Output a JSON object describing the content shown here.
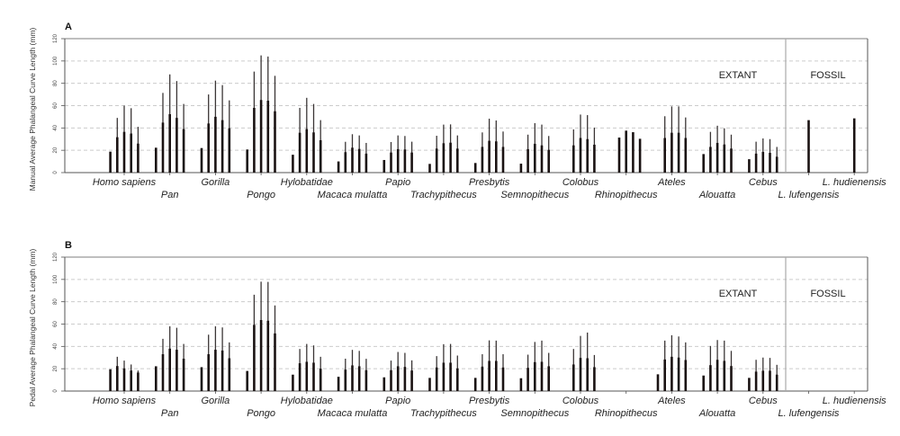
{
  "chart_data": [
    {
      "type": "bar",
      "panel": "A",
      "ylabel": "Manual Average Phalangeal Curve Length (mm)",
      "ylim": [
        0,
        120
      ],
      "yticks": [
        "0",
        "20",
        "40",
        "60",
        "80",
        "100",
        "120"
      ],
      "grid": "dashed horizontal",
      "regions": [
        "EXTANT",
        "FOSSIL"
      ],
      "note": "thick bar = mean, thin line = maximum; five bars per taxon for rays 1-5",
      "categories": [
        "Homo sapiens",
        "Pan",
        "Gorilla",
        "Pongo",
        "Hylobatidae",
        "Macaca mulatta",
        "Papio",
        "Trachypithecus",
        "Presbytis",
        "Semnopithecus",
        "Colobus",
        "Rhinopithecus",
        "Ateles",
        "Alouatta",
        "Cebus",
        "L. lufengensis",
        "L. hudienensis"
      ],
      "mean": [
        [
          18.8,
          31.7,
          36.5,
          35.0,
          26.0
        ],
        [
          22.3,
          44.8,
          52.3,
          49.0,
          39.0
        ],
        [
          22.0,
          44.0,
          50.0,
          47.0,
          39.7
        ],
        [
          20.7,
          58.0,
          65.0,
          64.4,
          55.0
        ],
        [
          16.0,
          35.7,
          39.0,
          36.0,
          29.0
        ],
        [
          10.0,
          18.3,
          22.3,
          21.2,
          17.0
        ],
        [
          11.3,
          18.0,
          21.0,
          20.7,
          18.0
        ],
        [
          7.8,
          21.5,
          26.3,
          26.8,
          21.5
        ],
        [
          8.6,
          23.0,
          28.5,
          28.0,
          23.0
        ],
        [
          8.0,
          21.0,
          25.8,
          24.4,
          20.4
        ],
        [
          null,
          24.4,
          31.0,
          30.0,
          25.0
        ],
        [
          null,
          31.4,
          37.6,
          36.2,
          30.3
        ],
        [
          null,
          31.0,
          35.7,
          35.7,
          31.0
        ],
        [
          16.6,
          23.0,
          26.6,
          25.2,
          21.5
        ],
        [
          12.0,
          17.0,
          18.5,
          17.7,
          14.2
        ],
        [
          null,
          null,
          47.0,
          null,
          null
        ],
        [
          null,
          null,
          48.6,
          null,
          null
        ]
      ],
      "max": [
        [
          null,
          49.0,
          60.0,
          57.7,
          41.0
        ],
        [
          null,
          71.4,
          88.0,
          82.0,
          61.5
        ],
        [
          null,
          70.0,
          82.4,
          78.4,
          64.7
        ],
        [
          null,
          90.5,
          105.0,
          104.0,
          86.7
        ],
        [
          null,
          58.0,
          67.0,
          61.5,
          47.0
        ],
        [
          null,
          27.6,
          34.4,
          33.3,
          26.6
        ],
        [
          null,
          27.4,
          33.3,
          32.8,
          27.7
        ],
        [
          null,
          33.0,
          43.0,
          43.2,
          33.3
        ],
        [
          null,
          36.0,
          48.3,
          46.7,
          36.8
        ],
        [
          null,
          34.0,
          44.3,
          43.0,
          32.8
        ],
        [
          null,
          38.7,
          52.0,
          51.5,
          40.3
        ],
        [
          null,
          null,
          null,
          null,
          null
        ],
        [
          null,
          50.5,
          59.3,
          59.3,
          49.4
        ],
        [
          null,
          36.5,
          42.0,
          39.7,
          34.0
        ],
        [
          null,
          27.7,
          30.6,
          30.0,
          23.0
        ],
        [
          null,
          null,
          null,
          null,
          null
        ],
        [
          null,
          null,
          null,
          null,
          null
        ]
      ]
    },
    {
      "type": "bar",
      "panel": "B",
      "ylabel": "Pedal Average Phalangeal Curve Length (mm)",
      "ylim": [
        0,
        120
      ],
      "yticks": [
        "0",
        "20",
        "40",
        "60",
        "80",
        "100",
        "120"
      ],
      "grid": "dashed horizontal",
      "regions": [
        "EXTANT",
        "FOSSIL"
      ],
      "note": "thick bar = mean, thin line = maximum; five bars per taxon for rays 1-5",
      "categories": [
        "Homo sapiens",
        "Pan",
        "Gorilla",
        "Pongo",
        "Hylobatidae",
        "Macaca mulatta",
        "Papio",
        "Trachypithecus",
        "Presbytis",
        "Semnopithecus",
        "Colobus",
        "Rhinopithecus",
        "Ateles",
        "Alouatta",
        "Cebus",
        "L. lufengensis",
        "L. hudienensis"
      ],
      "mean": [
        [
          19.5,
          22.4,
          20.3,
          18.4,
          16.6
        ],
        [
          22.2,
          33.0,
          38.0,
          37.0,
          29.0
        ],
        [
          21.4,
          33.0,
          37.0,
          36.3,
          29.4
        ],
        [
          18.0,
          59.3,
          63.6,
          63.0,
          51.6
        ],
        [
          14.7,
          24.9,
          26.2,
          25.4,
          20.0
        ],
        [
          12.8,
          19.2,
          23.0,
          22.2,
          18.7
        ],
        [
          12.3,
          18.7,
          22.2,
          21.6,
          18.4
        ],
        [
          11.8,
          21.1,
          25.4,
          25.4,
          20.3
        ],
        [
          11.8,
          21.9,
          27.0,
          27.0,
          21.1
        ],
        [
          11.5,
          20.8,
          25.9,
          26.2,
          22.2
        ],
        [
          null,
          23.8,
          29.7,
          29.4,
          21.4
        ],
        [
          null,
          null,
          null,
          null,
          null
        ],
        [
          15.0,
          28.3,
          30.7,
          30.0,
          27.8
        ],
        [
          13.9,
          23.2,
          28.0,
          27.0,
          22.4
        ],
        [
          11.8,
          17.4,
          18.2,
          18.2,
          14.7
        ],
        [
          null,
          null,
          null,
          null,
          null
        ],
        [
          null,
          null,
          null,
          null,
          null
        ]
      ],
      "max": [
        [
          null,
          30.7,
          27.3,
          23.8,
          18.4
        ],
        [
          null,
          46.8,
          58.0,
          56.7,
          42.2
        ],
        [
          null,
          50.5,
          58.0,
          57.0,
          43.6
        ],
        [
          null,
          86.3,
          98.0,
          97.8,
          76.7
        ],
        [
          null,
          37.7,
          42.2,
          40.9,
          30.7
        ],
        [
          null,
          29.0,
          36.9,
          36.0,
          28.9
        ],
        [
          null,
          27.3,
          35.0,
          34.2,
          27.5
        ],
        [
          null,
          31.3,
          42.0,
          42.2,
          31.8
        ],
        [
          null,
          33.0,
          45.4,
          45.2,
          33.0
        ],
        [
          null,
          32.6,
          44.0,
          45.2,
          34.2
        ],
        [
          null,
          37.7,
          49.4,
          52.4,
          32.3
        ],
        [
          null,
          null,
          null,
          null,
          null
        ],
        [
          null,
          45.2,
          50.0,
          48.9,
          43.6
        ],
        [
          null,
          40.4,
          45.7,
          45.2,
          36.0
        ],
        [
          null,
          28.0,
          30.0,
          29.7,
          23.5
        ],
        [
          null,
          null,
          null,
          null,
          null
        ],
        [
          null,
          null,
          null,
          null,
          null
        ]
      ]
    }
  ],
  "colors": {
    "bar": "#1a1212",
    "range": "#3a3535",
    "grid": "#cccccc",
    "axis": "#555555",
    "divider": "#aaaaaa"
  }
}
